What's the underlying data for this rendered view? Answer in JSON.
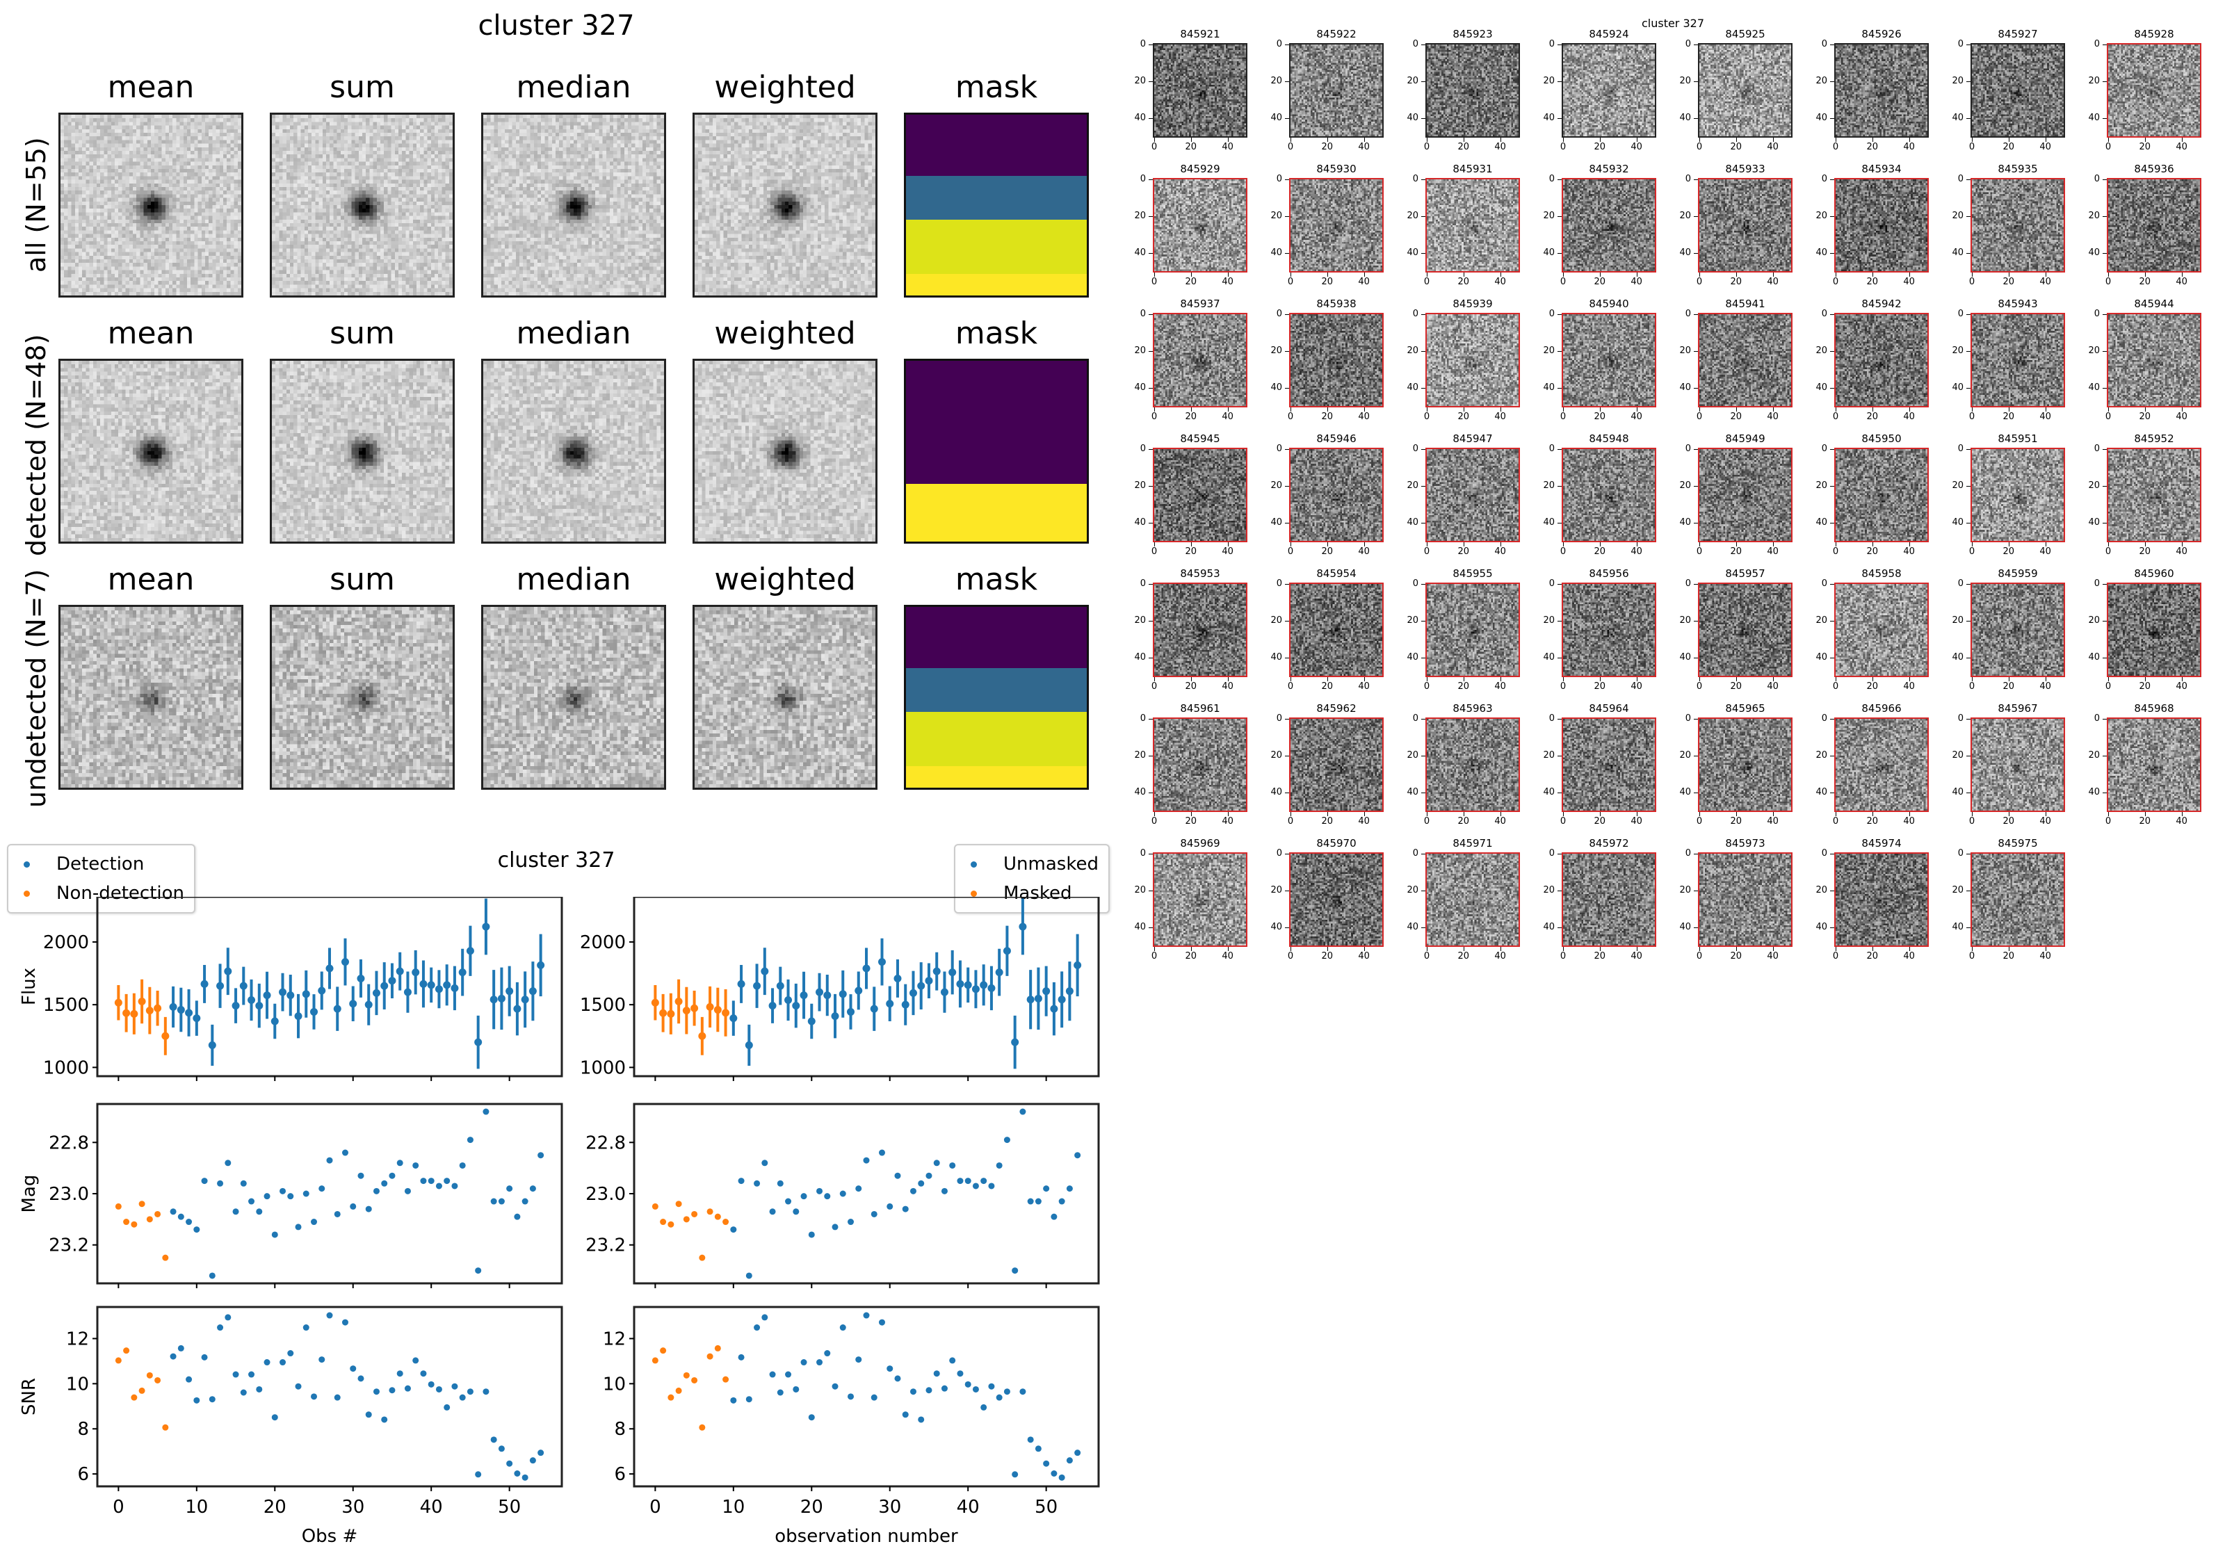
{
  "stack_figure": {
    "title": "cluster 327",
    "columns": [
      "mean",
      "sum",
      "median",
      "weighted",
      "mask"
    ],
    "rows": [
      {
        "label": "all (N=55)",
        "mask_bands": [
          {
            "fraction": 0.34,
            "color": "#440154"
          },
          {
            "fraction": 0.24,
            "color": "#31688e"
          },
          {
            "fraction": 0.3,
            "color": "#dde318"
          },
          {
            "fraction": 0.12,
            "color": "#fde725"
          }
        ]
      },
      {
        "label": "detected (N=48)",
        "mask_bands": [
          {
            "fraction": 0.68,
            "color": "#440154"
          },
          {
            "fraction": 0.32,
            "color": "#fde725"
          }
        ]
      },
      {
        "label": "undetected (N=7)",
        "mask_bands": [
          {
            "fraction": 0.34,
            "color": "#440154"
          },
          {
            "fraction": 0.24,
            "color": "#31688e"
          },
          {
            "fraction": 0.3,
            "color": "#dde318"
          },
          {
            "fraction": 0.12,
            "color": "#fde725"
          }
        ]
      }
    ]
  },
  "lightcurve_figure": {
    "title": "cluster 327",
    "left_legend": [
      "Detection",
      "Non-detection"
    ],
    "right_legend": [
      "Unmasked",
      "Masked"
    ],
    "left_xlabel": "Obs #",
    "right_xlabel": "observation number",
    "colors": {
      "blue": "#1f77b4",
      "orange": "#ff7f0e"
    }
  },
  "thumbnail_grid": {
    "title": "cluster 327",
    "ticks": [
      "0",
      "20",
      "40"
    ],
    "first_id": 845921,
    "ids": [
      "845921",
      "845922",
      "845923",
      "845924",
      "845925",
      "845926",
      "845927",
      "845928",
      "845929",
      "845930",
      "845931",
      "845932",
      "845933",
      "845934",
      "845935",
      "845936",
      "845937",
      "845938",
      "845939",
      "845940",
      "845941",
      "845942",
      "845943",
      "845944",
      "845945",
      "845946",
      "845947",
      "845948",
      "845949",
      "845950",
      "845951",
      "845952",
      "845953",
      "845954",
      "845955",
      "845956",
      "845957",
      "845958",
      "845959",
      "845960",
      "845961",
      "845962",
      "845963",
      "845964",
      "845965",
      "845966",
      "845967",
      "845968",
      "845969",
      "845970",
      "845971",
      "845972",
      "845973",
      "845974",
      "845975"
    ],
    "masked_border_color": "#d62728",
    "unmasked_count": 7
  },
  "chart_data": [
    {
      "type": "scatter",
      "title": "cluster 327",
      "panel": "Flux (detection split)",
      "xlabel": "",
      "ylabel": "Flux",
      "x": [
        0,
        1,
        2,
        3,
        4,
        5,
        6,
        7,
        8,
        9,
        10,
        11,
        12,
        13,
        14,
        15,
        16,
        17,
        18,
        19,
        20,
        21,
        22,
        23,
        24,
        25,
        26,
        27,
        28,
        29,
        30,
        31,
        32,
        33,
        34,
        35,
        36,
        37,
        38,
        39,
        40,
        41,
        42,
        43,
        44,
        45,
        46,
        47,
        48,
        49,
        50,
        51,
        52,
        53,
        54
      ],
      "y": [
        1516,
        1433,
        1427,
        1526,
        1453,
        1472,
        1250,
        1482,
        1459,
        1435,
        1392,
        1665,
        1177,
        1650,
        1766,
        1492,
        1650,
        1537,
        1492,
        1575,
        1368,
        1600,
        1575,
        1409,
        1585,
        1443,
        1612,
        1789,
        1467,
        1841,
        1508,
        1709,
        1500,
        1593,
        1650,
        1691,
        1766,
        1600,
        1758,
        1665,
        1657,
        1624,
        1657,
        1632,
        1758,
        1929,
        1201,
        2122,
        1541,
        1549,
        1608,
        1467,
        1541,
        1608,
        1815
      ],
      "yerr_frac": 0.09,
      "orange_until": 6,
      "yticks": [
        "1000",
        "1500",
        "2000"
      ],
      "xticks": [
        "0",
        "10",
        "20",
        "30",
        "40",
        "50"
      ],
      "ylim": [
        930,
        2360
      ],
      "xlim": [
        -2.7,
        56.7
      ],
      "legend": [
        "Detection",
        "Non-detection"
      ]
    },
    {
      "type": "scatter",
      "panel": "Mag (detection split)",
      "ylabel": "Mag",
      "y": [
        23.05,
        23.11,
        23.12,
        23.04,
        23.1,
        23.08,
        23.25,
        23.07,
        23.09,
        23.11,
        23.14,
        22.95,
        23.32,
        22.96,
        22.88,
        23.07,
        22.96,
        23.03,
        23.07,
        23.01,
        23.16,
        22.99,
        23.01,
        23.13,
        23.0,
        23.11,
        22.98,
        22.87,
        23.08,
        22.84,
        23.05,
        22.93,
        23.06,
        22.99,
        22.96,
        22.93,
        22.88,
        22.99,
        22.89,
        22.95,
        22.95,
        22.97,
        22.95,
        22.97,
        22.89,
        22.79,
        23.3,
        22.68,
        23.03,
        23.03,
        22.98,
        23.09,
        23.03,
        22.98,
        22.85
      ],
      "orange_until": 6,
      "inverted": true,
      "yticks": [
        "22.8",
        "23.0",
        "23.2"
      ],
      "ylim": [
        22.65,
        23.35
      ]
    },
    {
      "type": "scatter",
      "panel": "SNR (detection split)",
      "ylabel": "SNR",
      "xlabel": "Obs #",
      "y": [
        11.03,
        11.47,
        9.39,
        9.69,
        10.37,
        10.15,
        8.06,
        11.21,
        11.57,
        10.19,
        9.26,
        11.17,
        9.31,
        12.49,
        12.94,
        10.41,
        9.61,
        10.41,
        9.75,
        10.95,
        8.51,
        10.95,
        11.35,
        9.88,
        12.49,
        9.43,
        11.07,
        13.03,
        9.39,
        12.72,
        10.67,
        10.23,
        8.63,
        9.65,
        8.41,
        9.71,
        10.45,
        9.79,
        11.03,
        10.45,
        9.97,
        9.75,
        8.95,
        9.88,
        9.39,
        9.65,
        5.98,
        9.65,
        7.52,
        7.12,
        6.46,
        6.02,
        5.84,
        6.6,
        6.94
      ],
      "orange_until": 6,
      "yticks": [
        "6",
        "8",
        "10",
        "12"
      ],
      "xticks": [
        "0",
        "10",
        "20",
        "30",
        "40",
        "50"
      ],
      "ylim": [
        5.45,
        13.4
      ]
    },
    {
      "type": "scatter",
      "panel": "Flux (mask split)",
      "orange_until": 9,
      "legend": [
        "Unmasked",
        "Masked"
      ],
      "same_values_as_panel": "Flux (detection split)"
    },
    {
      "type": "scatter",
      "panel": "Mag (mask split)",
      "orange_until": 9,
      "same_values_as_panel": "Mag (detection split)"
    },
    {
      "type": "scatter",
      "panel": "SNR (mask split)",
      "xlabel": "observation number",
      "orange_until": 9,
      "same_values_as_panel": "SNR (detection split)"
    }
  ]
}
